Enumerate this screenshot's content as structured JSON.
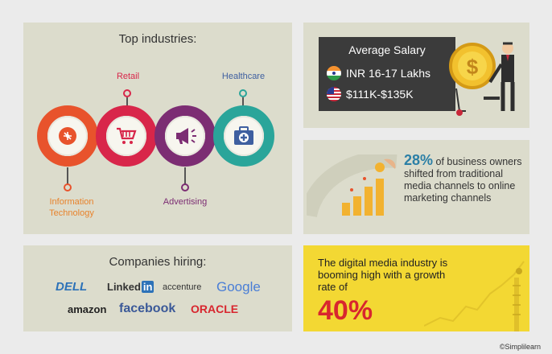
{
  "industries": {
    "title": "Top industries:",
    "items": [
      {
        "label": "Information Technology",
        "color": "#e8532c",
        "icon": "circuit-icon"
      },
      {
        "label": "Retail",
        "color": "#d8264a",
        "icon": "shopping-cart-icon"
      },
      {
        "label": "Advertising",
        "color": "#7c2d73",
        "icon": "megaphone-icon"
      },
      {
        "label": "Healthcare",
        "color": "#2aa59a",
        "icon": "medical-kit-icon"
      }
    ]
  },
  "salary": {
    "title": "Average Salary",
    "india": "INR 16-17 Lakhs",
    "us": "$111K-$135K",
    "icons": [
      "india-flag-icon",
      "us-flag-icon",
      "dollar-coin-icon"
    ]
  },
  "business": {
    "percent": "28%",
    "text": " of business owners shifted from traditional media channels to online marketing channels"
  },
  "companies": {
    "title": "Companies hiring:",
    "logos": [
      "DELL",
      "Linked",
      "in",
      "accenture",
      "Google",
      "amazon",
      "facebook",
      "ORACLE"
    ]
  },
  "growth": {
    "text": "The digital media industry is booming high with a growth rate of",
    "percent": "40%"
  },
  "footer": {
    "copyright": "©Simplilearn"
  },
  "colors": {
    "panel": "#dcdccc",
    "background": "#ebebeb",
    "growth_bg": "#f3d833",
    "accent_blue": "#2b7fa6",
    "accent_red": "#d8262e"
  }
}
